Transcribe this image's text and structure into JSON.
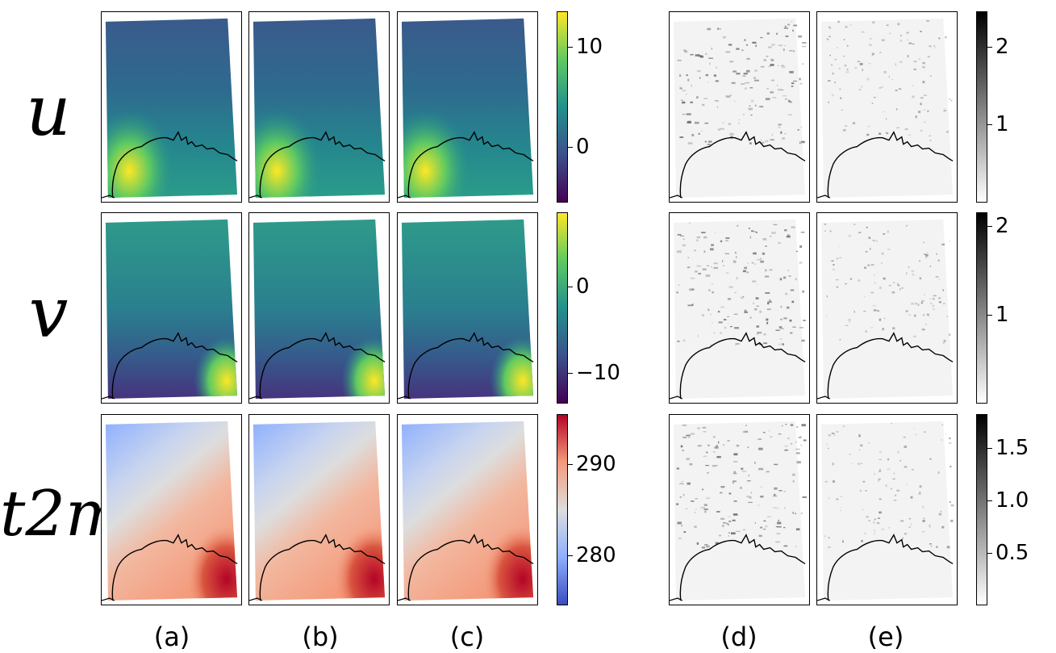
{
  "chart_data": {
    "type": "heatmap",
    "rows": [
      {
        "name": "u",
        "label": "u",
        "colormap": "viridis",
        "colorbar_ticks": [
          "10",
          "0"
        ],
        "colorbar_tick_values": [
          10,
          0
        ],
        "range": [
          -5.5,
          13.5
        ],
        "error_colorbar_ticks": [
          "2",
          "1"
        ],
        "error_colorbar_tick_values": [
          2,
          1
        ],
        "error_range": [
          0,
          2.45
        ]
      },
      {
        "name": "v",
        "label": "v",
        "colormap": "viridis",
        "colorbar_ticks": [
          "0",
          "−10"
        ],
        "colorbar_tick_values": [
          0,
          -10
        ],
        "range": [
          -13.5,
          8.5
        ],
        "error_colorbar_ticks": [
          "2",
          "1"
        ],
        "error_colorbar_tick_values": [
          2,
          1
        ],
        "error_range": [
          0,
          2.15
        ]
      },
      {
        "name": "t2m",
        "label": "t2m",
        "colormap": "coolwarm",
        "colorbar_ticks": [
          "290",
          "280"
        ],
        "colorbar_tick_values": [
          290,
          280
        ],
        "range": [
          274.5,
          295.5
        ],
        "error_colorbar_ticks": [
          "1.5",
          "1.0",
          "0.5"
        ],
        "error_colorbar_tick_values": [
          1.5,
          1.0,
          0.5
        ],
        "error_range": [
          0,
          1.82
        ]
      }
    ],
    "columns": [
      "(a)",
      "(b)",
      "(c)",
      "(d)",
      "(e)"
    ],
    "error_colormap": "Greys"
  },
  "colors": {
    "viridis": [
      "#440154",
      "#3b528b",
      "#21918c",
      "#5ec962",
      "#fde725"
    ],
    "coolwarm": [
      "#3b4cc0",
      "#8db0fe",
      "#dddddd",
      "#f49a7b",
      "#b40426"
    ],
    "greys": [
      "#ffffff",
      "#000000"
    ]
  }
}
